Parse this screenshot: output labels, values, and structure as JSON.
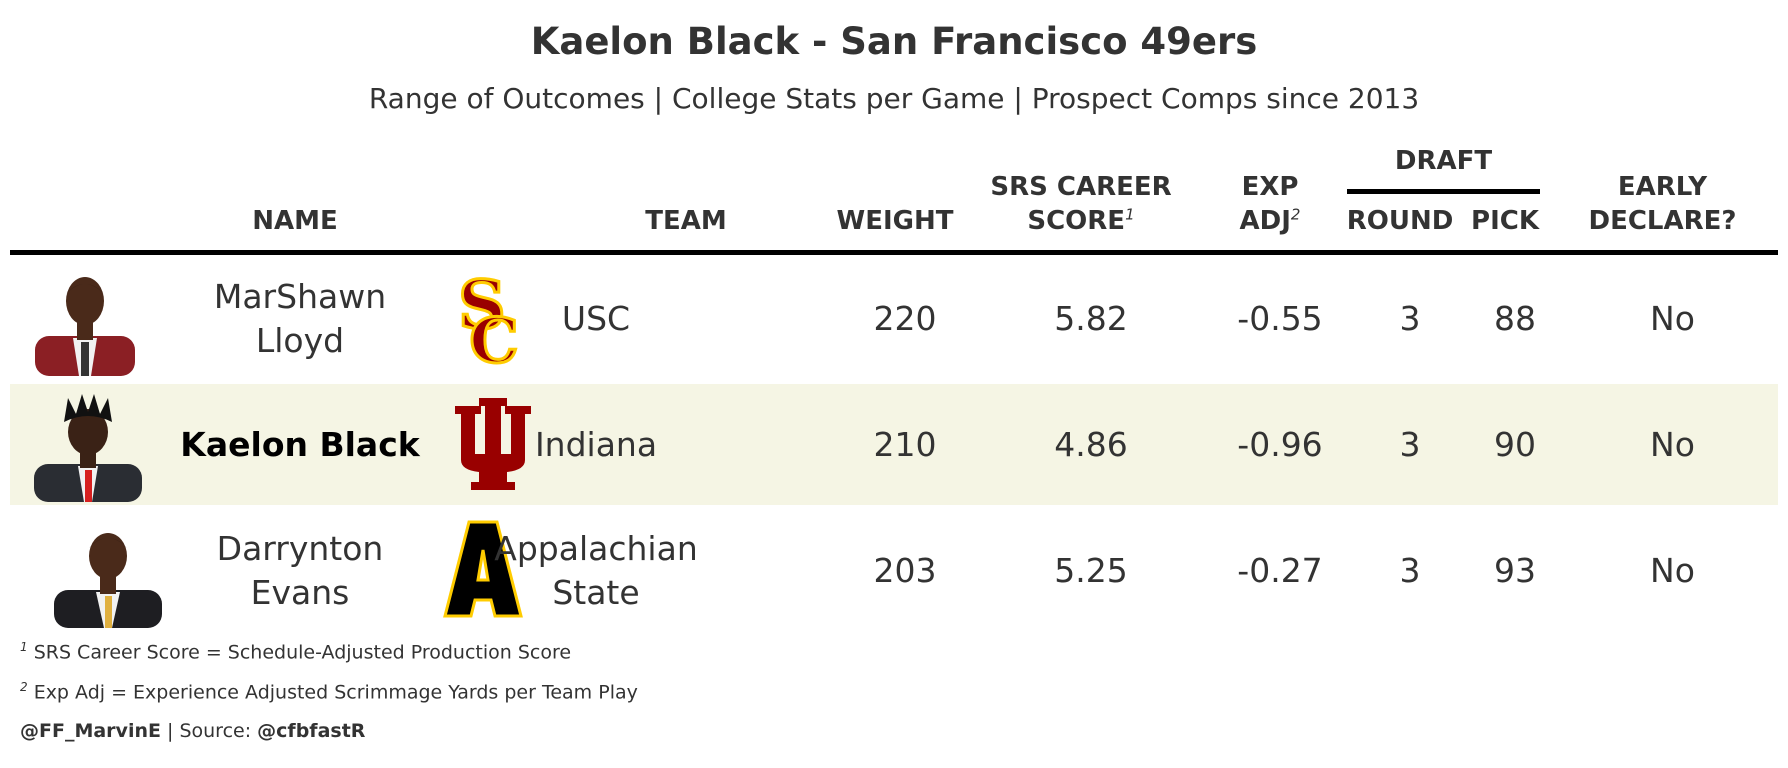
{
  "title": "Kaelon Black - San Francisco 49ers",
  "subtitle": "Range of Outcomes | College Stats per Game | Prospect Comps since 2013",
  "headers": {
    "name": "NAME",
    "team": "TEAM",
    "weight": "WEIGHT",
    "srs_line1": "SRS CAREER",
    "srs_line2": "SCORE",
    "srs_note": "1",
    "exp_line1": "EXP",
    "exp_line2": "ADJ",
    "exp_note": "2",
    "draft": "DRAFT",
    "round": "ROUND",
    "pick": "PICK",
    "early_line1": "EARLY",
    "early_line2": "DECLARE?"
  },
  "rows": [
    {
      "name_line1": "MarShawn",
      "name_line2": "Lloyd",
      "team_line1": "USC",
      "team_line2": "",
      "weight": "220",
      "srs": "5.82",
      "exp_adj": "-0.55",
      "round": "3",
      "pick": "88",
      "early": "No",
      "logo": "usc-sc-logo",
      "colors": {
        "primary": "#990000",
        "secondary": "#FFCC00"
      }
    },
    {
      "name_line1": "Kaelon Black",
      "name_line2": "",
      "team_line1": "Indiana",
      "team_line2": "",
      "weight": "210",
      "srs": "4.86",
      "exp_adj": "-0.96",
      "round": "3",
      "pick": "90",
      "early": "No",
      "logo": "indiana-iu-logo",
      "colors": {
        "primary": "#990000"
      }
    },
    {
      "name_line1": "Darrynton",
      "name_line2": "Evans",
      "team_line1": "Appalachian",
      "team_line2": "State",
      "weight": "203",
      "srs": "5.25",
      "exp_adj": "-0.27",
      "round": "3",
      "pick": "93",
      "early": "No",
      "logo": "app-state-a-logo",
      "colors": {
        "primary": "#000000",
        "secondary": "#FFCC00"
      }
    }
  ],
  "footnotes": {
    "n1_mark": "1",
    "n1": "SRS Career Score = Schedule-Adjusted Production Score",
    "n2_mark": "2",
    "n2": "Exp Adj = Experience Adjusted Scrimmage Yards per Team Play",
    "author": "@FF_MarvinE",
    "source_label": "| Source:",
    "source": "@cfbfastR"
  },
  "colors": {
    "highlight_row": "#f5f5e4",
    "text": "#333333",
    "rule": "#000000"
  }
}
